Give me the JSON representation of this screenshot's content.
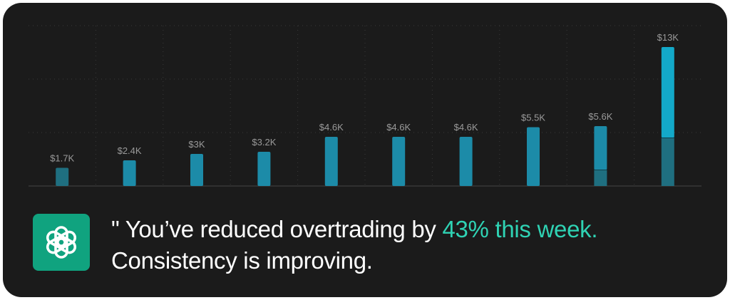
{
  "chart_data": {
    "type": "bar",
    "categories": [
      "",
      "",
      "",
      "",
      "",
      "",
      "",
      "",
      "",
      ""
    ],
    "values": [
      1700,
      2400,
      3000,
      3200,
      4600,
      4600,
      4600,
      5500,
      5600,
      13000
    ],
    "labels": [
      "$1.7K",
      "$2.4K",
      "$3K",
      "$3.2K",
      "$4.6K",
      "$4.6K",
      "$4.6K",
      "$5.5K",
      "$5.6K",
      "$13K"
    ],
    "base_values": [
      1700,
      2400,
      3000,
      3200,
      4600,
      4600,
      4600,
      5500,
      1500,
      4500
    ],
    "ylim": [
      0,
      15000
    ],
    "grid": true,
    "title": "",
    "xlabel": "",
    "ylabel": ""
  },
  "colors": {
    "background": "#1b1b1b",
    "bar": "#1c8ba8",
    "bar_base": "#1f6f80",
    "bar_highlight": "#13a9c9",
    "grid": "#3a3a3a",
    "label": "#9a9a9a",
    "accent": "#2fd3b4",
    "logo_bg": "#10a37f"
  },
  "insight": {
    "icon": "chatgpt-logo-icon",
    "quote_mark": "\"",
    "text_before": " You’ve reduced overtrading by ",
    "highlight": "43% this week.",
    "line2": "Consistency is improving."
  }
}
